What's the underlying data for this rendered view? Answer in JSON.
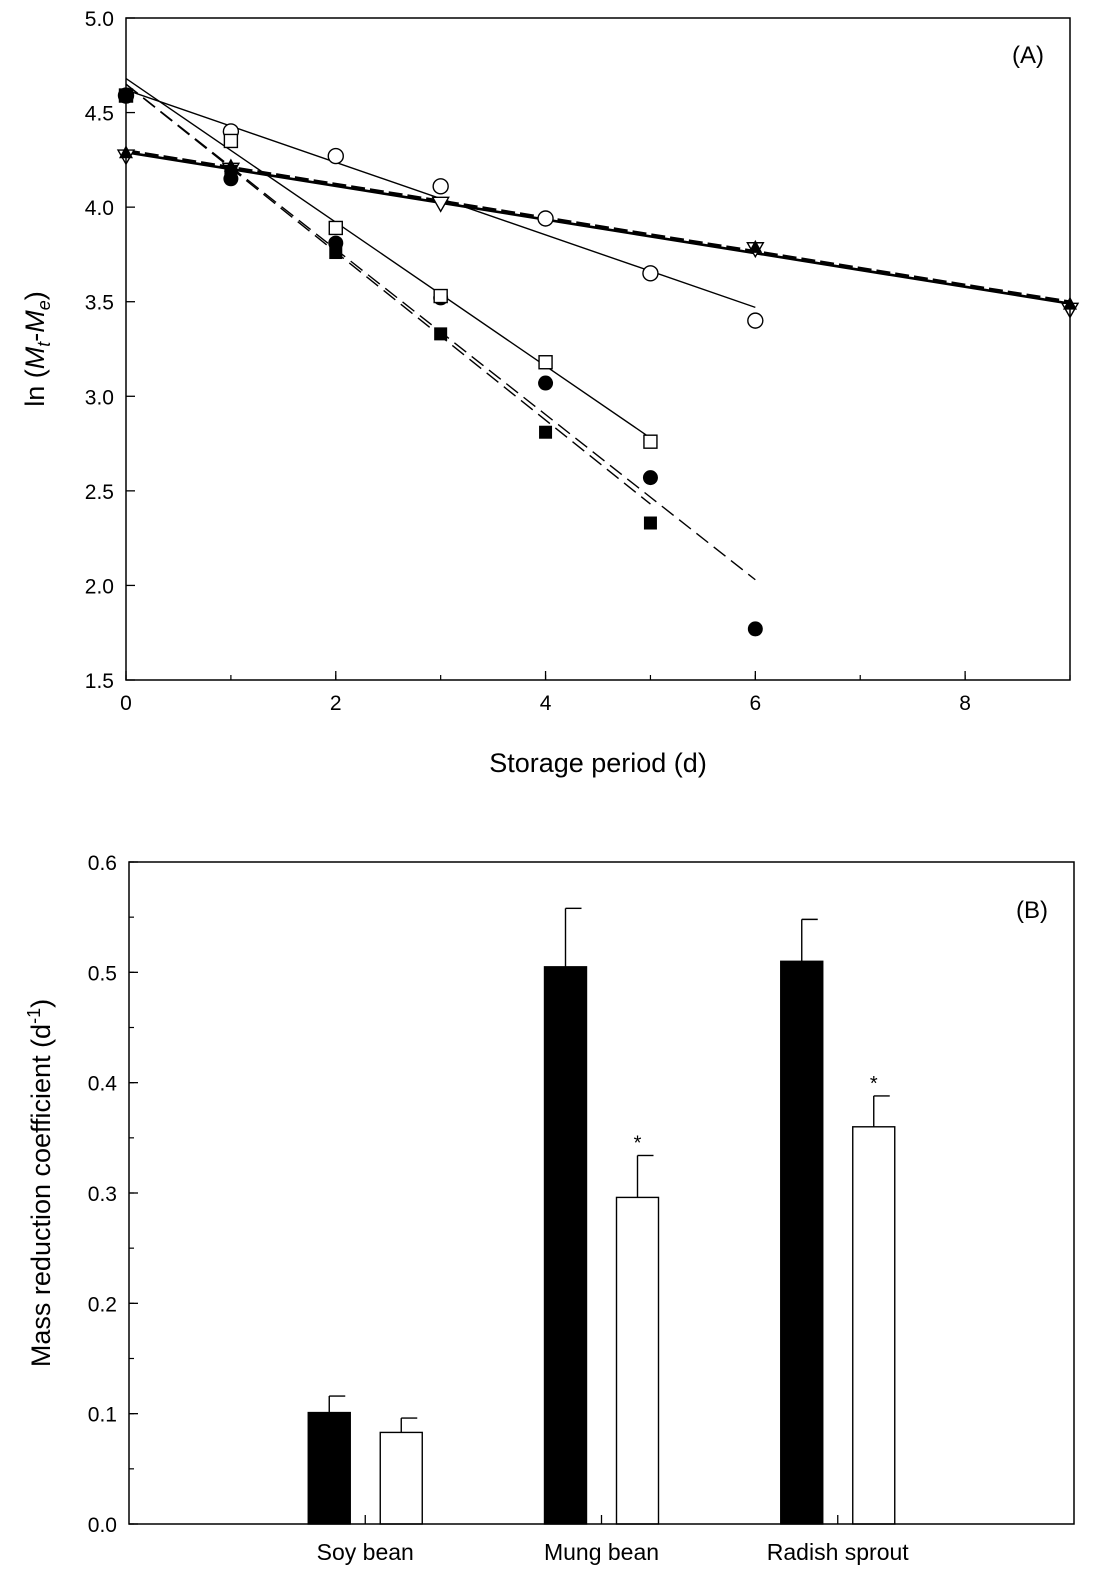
{
  "chart_data": [
    {
      "type": "scatter",
      "panel_label": "(A)",
      "xlabel": "Storage period (d)",
      "ylabel_prefix": "ln (",
      "ylabel_M1": "M",
      "ylabel_sub1": "t",
      "ylabel_dash": "-",
      "ylabel_M2": "M",
      "ylabel_sub2": "e",
      "ylabel_suffix": ")",
      "xlim": [
        0,
        9
      ],
      "ylim": [
        1.5,
        5.0
      ],
      "xticks": [
        "0",
        "2",
        "4",
        "6",
        "8"
      ],
      "yticks": [
        "1.5",
        "2.0",
        "2.5",
        "3.0",
        "3.5",
        "4.0",
        "4.5",
        "5.0"
      ],
      "grid": false,
      "series": [
        {
          "marker": "open-circle",
          "x": [
            0,
            1,
            2,
            3,
            4,
            5,
            6
          ],
          "y": [
            4.59,
            4.4,
            4.27,
            4.11,
            3.94,
            3.65,
            3.4
          ],
          "fit": {
            "x": [
              0,
              6
            ],
            "y": [
              4.62,
              3.47
            ],
            "style": "solid"
          }
        },
        {
          "marker": "filled-circle",
          "x": [
            0,
            1,
            2,
            3,
            4,
            5,
            6
          ],
          "y": [
            4.59,
            4.15,
            3.81,
            3.52,
            3.07,
            2.57,
            1.77
          ],
          "fit": {
            "x": [
              0,
              6
            ],
            "y": [
              4.65,
              2.03
            ],
            "style": "dashed"
          }
        },
        {
          "marker": "open-square",
          "x": [
            0,
            1,
            2,
            3,
            4,
            5
          ],
          "y": [
            4.59,
            4.35,
            3.89,
            3.53,
            3.18,
            2.76
          ],
          "fit": {
            "x": [
              0,
              5
            ],
            "y": [
              4.68,
              2.78
            ],
            "style": "solid"
          }
        },
        {
          "marker": "filled-square",
          "x": [
            0,
            1,
            2,
            3,
            4,
            5
          ],
          "y": [
            4.59,
            4.19,
            3.76,
            3.33,
            2.81,
            2.33
          ],
          "fit": {
            "x": [
              0,
              5
            ],
            "y": [
              4.65,
              2.43
            ],
            "style": "dashed"
          }
        },
        {
          "marker": "open-triangle-down",
          "x": [
            0,
            1,
            3,
            6,
            9
          ],
          "y": [
            4.27,
            4.2,
            4.02,
            3.78,
            3.46
          ],
          "fit": {
            "x": [
              0,
              9
            ],
            "y": [
              4.29,
              3.49
            ],
            "style": "solid"
          }
        },
        {
          "marker": "filled-triangle-up",
          "x": [
            0,
            1,
            6,
            9
          ],
          "y": [
            4.29,
            4.22,
            3.79,
            3.49
          ],
          "fit": {
            "x": [
              0,
              9
            ],
            "y": [
              4.3,
              3.5
            ],
            "style": "dashed"
          }
        }
      ]
    },
    {
      "type": "bar",
      "panel_label": "(B)",
      "ylabel_main": "Mass reduction coefficient (d",
      "ylabel_sup": "-1",
      "ylabel_end": ")",
      "ylim": [
        0.0,
        0.6
      ],
      "yticks": [
        "0.0",
        "0.1",
        "0.2",
        "0.3",
        "0.4",
        "0.5",
        "0.6"
      ],
      "grid": false,
      "categories": [
        "Soy bean",
        "Mung bean",
        "Radish sprout"
      ],
      "series": [
        {
          "fill": "#000000",
          "values": [
            0.101,
            0.505,
            0.51
          ],
          "errors": [
            0.015,
            0.053,
            0.038
          ],
          "marks": [
            "",
            "",
            ""
          ]
        },
        {
          "fill": "#ffffff",
          "values": [
            0.083,
            0.296,
            0.36
          ],
          "errors": [
            0.013,
            0.038,
            0.028
          ],
          "marks": [
            "",
            "*",
            "*"
          ]
        }
      ]
    }
  ]
}
